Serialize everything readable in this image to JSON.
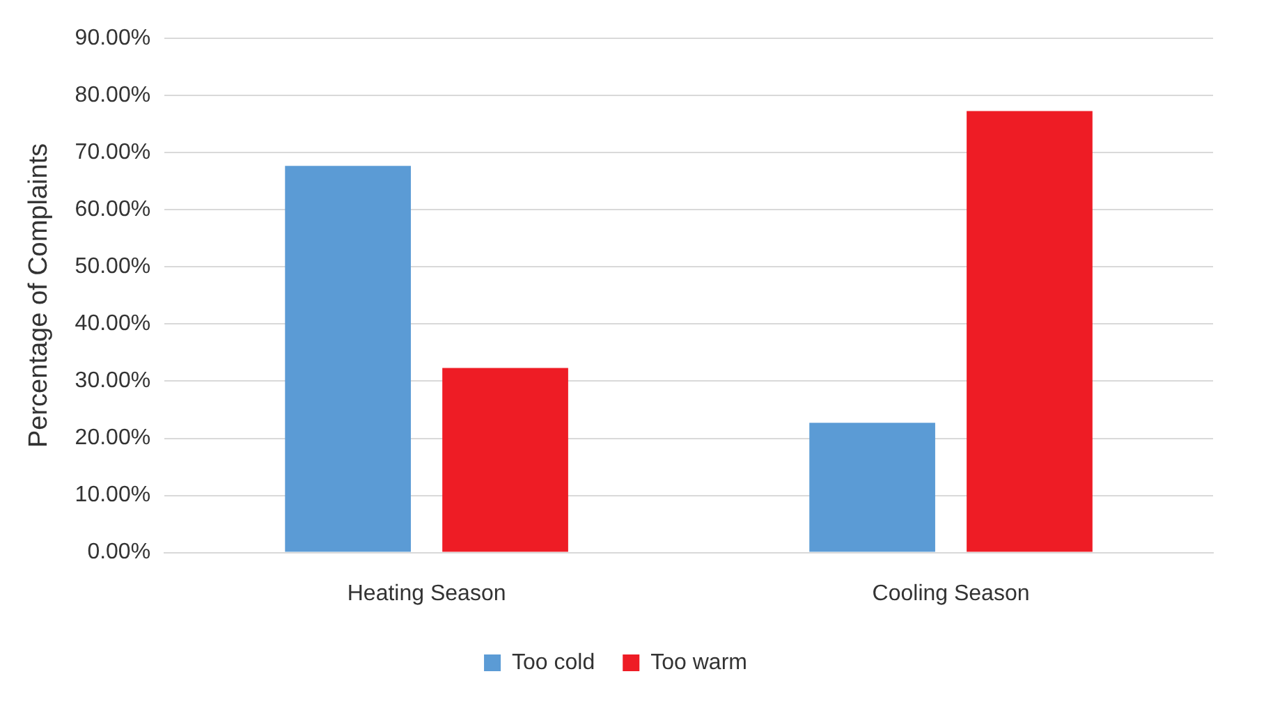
{
  "chart_data": {
    "type": "bar",
    "ylabel": "Percentage of Complaints",
    "categories": [
      "Heating Season",
      "Cooling Season"
    ],
    "series": [
      {
        "name": "Too cold",
        "color": "#5b9bd5",
        "values": [
          67.7,
          22.7
        ]
      },
      {
        "name": "Too warm",
        "color": "#ee1c25",
        "values": [
          32.3,
          77.3
        ]
      }
    ],
    "ylim": [
      0,
      90
    ],
    "yticks": [
      {
        "value": 0,
        "label": "0.00%"
      },
      {
        "value": 10,
        "label": "10.00%"
      },
      {
        "value": 20,
        "label": "20.00%"
      },
      {
        "value": 30,
        "label": "30.00%"
      },
      {
        "value": 40,
        "label": "40.00%"
      },
      {
        "value": 50,
        "label": "50.00%"
      },
      {
        "value": 60,
        "label": "60.00%"
      },
      {
        "value": 70,
        "label": "70.00%"
      },
      {
        "value": 80,
        "label": "80.00%"
      },
      {
        "value": 90,
        "label": "90.00%"
      }
    ],
    "grid": "y",
    "legend": "bottom"
  }
}
